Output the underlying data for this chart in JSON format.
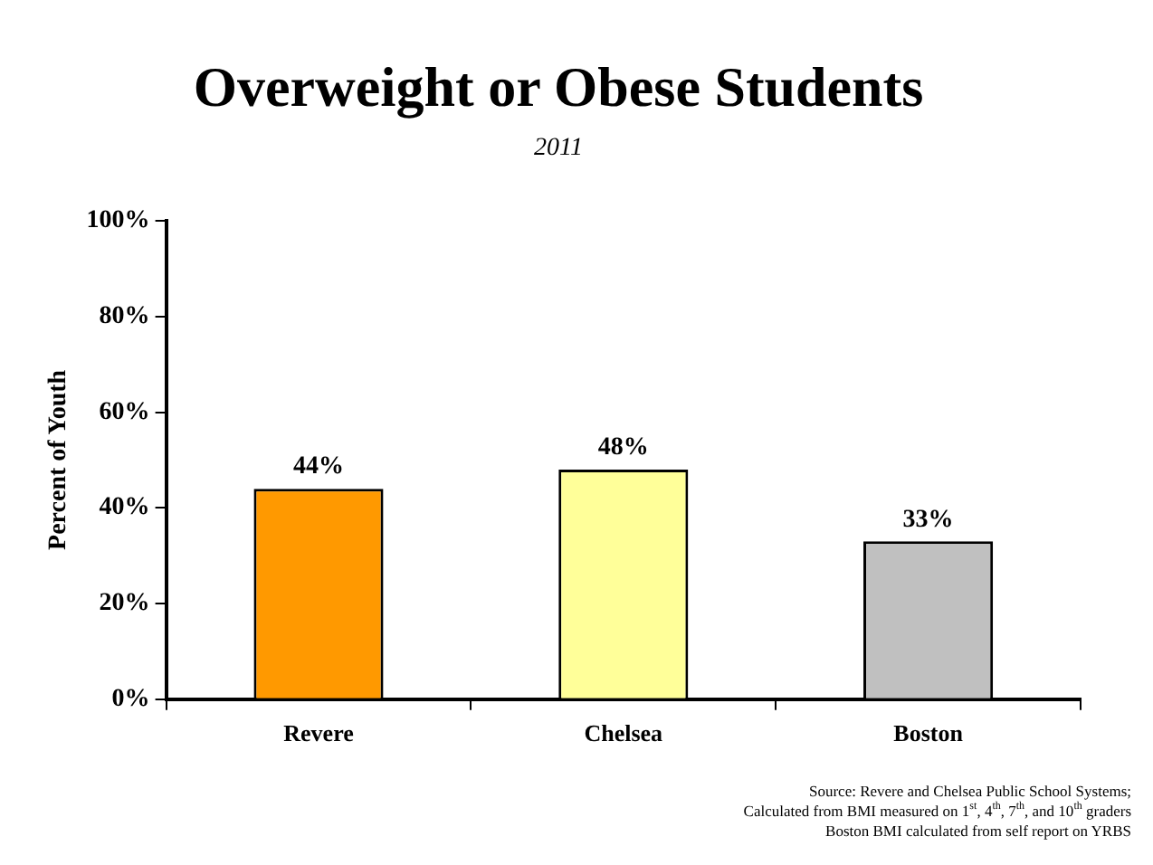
{
  "chart_data": {
    "type": "bar",
    "title": "Overweight or Obese Students",
    "subtitle": "2011",
    "ylabel": "Percent of Youth",
    "categories": [
      "Revere",
      "Chelsea",
      "Boston"
    ],
    "values": [
      44,
      48,
      33
    ],
    "colors": [
      "#ff9900",
      "#ffff99",
      "#c0c0c0"
    ],
    "value_labels": [
      "44%",
      "48%",
      "33%"
    ],
    "ylim": [
      0,
      100
    ],
    "yticks": [
      {
        "value": 0,
        "label": "0%"
      },
      {
        "value": 20,
        "label": "20%"
      },
      {
        "value": 40,
        "label": "40%"
      },
      {
        "value": 60,
        "label": "60%"
      },
      {
        "value": 80,
        "label": "80%"
      },
      {
        "value": 100,
        "label": "100%"
      }
    ],
    "grid": false,
    "annotations": [
      "Source: Revere and Chelsea Public School Systems;",
      "Calculated from BMI measured on 1$^{st}$, 4$^{th}$, 7$^{th}$, and 10$^{th}$ graders",
      "Boston BMI calculated from self report on YRBS"
    ]
  }
}
